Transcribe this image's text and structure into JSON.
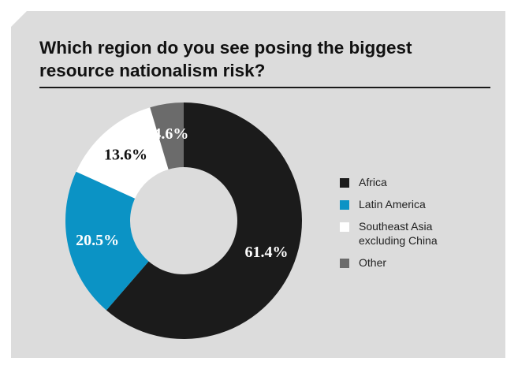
{
  "title": "Which region do you see posing the biggest resource nationalism risk?",
  "chart_data": {
    "type": "pie",
    "donut": true,
    "title": "Which region do you see posing the biggest resource nationalism risk?",
    "categories": [
      "Africa",
      "Latin America",
      "Southeast Asia excluding China",
      "Other"
    ],
    "values": [
      61.4,
      20.5,
      13.6,
      4.6
    ],
    "value_labels": [
      "61.4%",
      "20.5%",
      "13.6%",
      "4.6%"
    ],
    "colors": [
      "#1b1b1b",
      "#0b93c5",
      "#ffffff",
      "#6b6b6b"
    ],
    "label_colors": [
      "#ffffff",
      "#ffffff",
      "#111111",
      "#ffffff"
    ],
    "legend": {
      "position": "right",
      "entries": [
        "Africa",
        "Latin America",
        "Southeast Asia excluding China",
        "Other"
      ]
    }
  }
}
